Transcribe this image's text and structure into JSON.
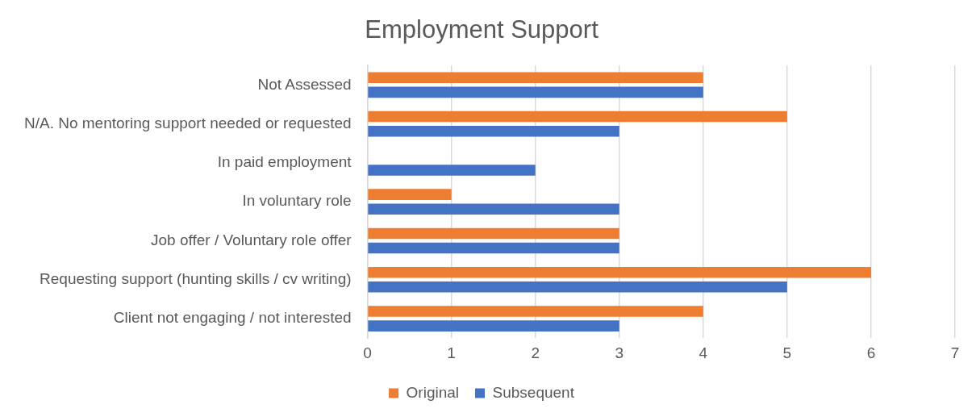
{
  "chart_data": {
    "type": "bar",
    "orientation": "horizontal",
    "title": "Employment Support",
    "categories": [
      "Not Assessed",
      "N/A. No mentoring support needed or requested",
      "In paid employment",
      "In voluntary role",
      "Job offer / Voluntary role offer",
      "Requesting support (hunting skills / cv writing)",
      "Client not engaging / not interested"
    ],
    "series": [
      {
        "name": "Original",
        "color": "#ed7d31",
        "values": [
          4,
          5,
          0,
          1,
          3,
          6,
          4
        ]
      },
      {
        "name": "Subsequent",
        "color": "#4472c4",
        "values": [
          4,
          3,
          2,
          3,
          3,
          5,
          3
        ]
      }
    ],
    "xlim": [
      0,
      7
    ],
    "xticks": [
      0,
      1,
      2,
      3,
      4,
      5,
      6,
      7
    ],
    "grid": "x",
    "legend": "bottom"
  }
}
